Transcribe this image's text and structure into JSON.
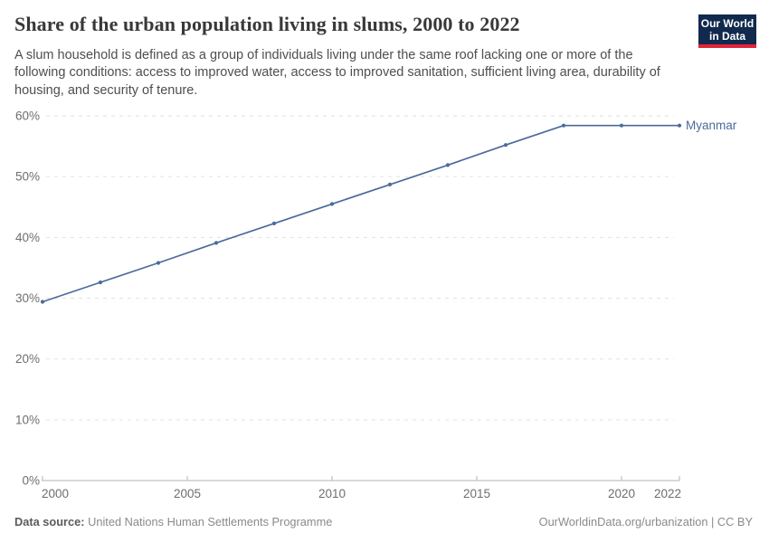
{
  "header": {
    "title": "Share of the urban population living in slums, 2000 to 2022",
    "subtitle": "A slum household is defined as a group of individuals living under the same roof lacking one or more of the following conditions: access to improved water, access to improved sanitation, sufficient living area, durability of housing, and security of tenure.",
    "logo": {
      "line1": "Our World",
      "line2": "in Data"
    }
  },
  "chart_data": {
    "type": "line",
    "title": "Share of the urban population living in slums, 2000 to 2022",
    "x": [
      2000,
      2002,
      2004,
      2006,
      2008,
      2010,
      2012,
      2014,
      2016,
      2018,
      2020,
      2022
    ],
    "series": [
      {
        "name": "Myanmar",
        "values": [
          29.4,
          32.6,
          35.8,
          39.1,
          42.3,
          45.5,
          48.7,
          51.9,
          55.2,
          58.4,
          58.4,
          58.4
        ],
        "color": "#4C6A9C"
      }
    ],
    "xlim": [
      2000,
      2022
    ],
    "ylim": [
      0,
      60
    ],
    "yticks": [
      {
        "value": 0,
        "label": "0%"
      },
      {
        "value": 10,
        "label": "10%"
      },
      {
        "value": 20,
        "label": "20%"
      },
      {
        "value": 30,
        "label": "30%"
      },
      {
        "value": 40,
        "label": "40%"
      },
      {
        "value": 50,
        "label": "50%"
      },
      {
        "value": 60,
        "label": "60%"
      }
    ],
    "xticks": [
      {
        "value": 2000,
        "label": "2000"
      },
      {
        "value": 2005,
        "label": "2005"
      },
      {
        "value": 2010,
        "label": "2010"
      },
      {
        "value": 2015,
        "label": "2015"
      },
      {
        "value": 2020,
        "label": "2020"
      },
      {
        "value": 2022,
        "label": "2022"
      }
    ],
    "grid": "horizontal-dashed",
    "legend_position": "end-of-line-label"
  },
  "footer": {
    "datasource_label": "Data source:",
    "datasource_value": "United Nations Human Settlements Programme",
    "right_note": "OurWorldinData.org/urbanization | CC BY"
  },
  "colors": {
    "line": "#4C6A9C",
    "entity_label": "#4C6A9C",
    "gridline": "#e2e2e2",
    "axis": "#b3b3b3",
    "tick_label": "#6e6e6e",
    "logo_bg": "#12294E",
    "logo_stripe": "#E0243A"
  }
}
